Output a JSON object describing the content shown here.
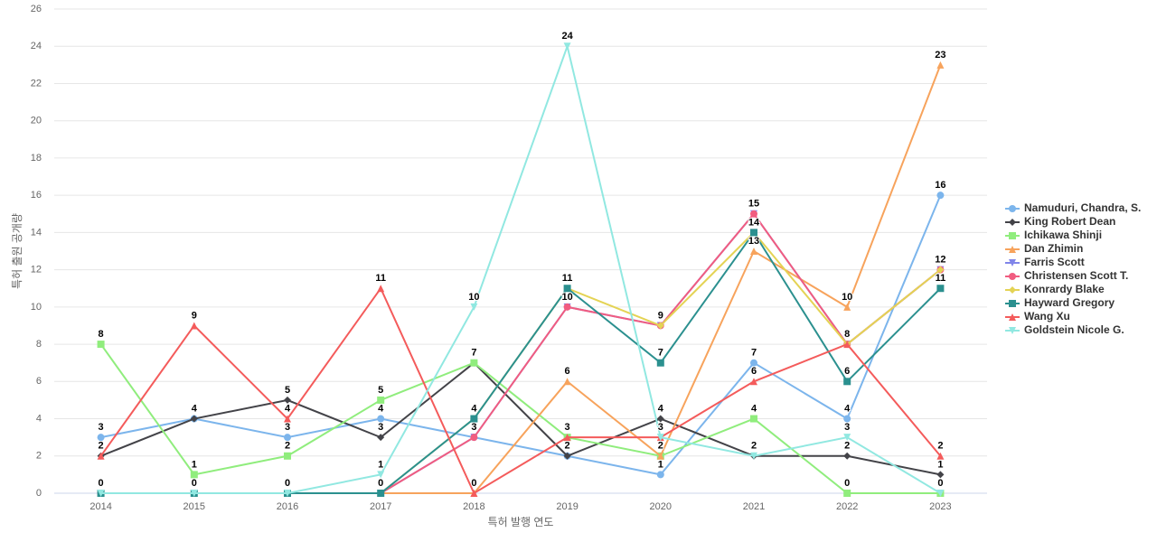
{
  "chart_data": {
    "type": "line",
    "x_label": "특허 발행 연도",
    "y_label": "특허 출원 공개량",
    "categories": [
      "2014",
      "2015",
      "2016",
      "2017",
      "2018",
      "2019",
      "2020",
      "2021",
      "2022",
      "2023"
    ],
    "ylim": [
      0,
      26
    ],
    "yticks": [
      0,
      2,
      4,
      6,
      8,
      10,
      12,
      14,
      16,
      18,
      20,
      22,
      24,
      26
    ],
    "grid": true,
    "legend": "right",
    "series": [
      {
        "name": "Namuduri, Chandra, S.",
        "color": "#7cb5ec",
        "values": [
          3,
          4,
          3,
          4,
          3,
          2,
          1,
          7,
          4,
          16
        ]
      },
      {
        "name": "King Robert Dean",
        "color": "#434348",
        "values": [
          2,
          4,
          5,
          3,
          7,
          2,
          4,
          2,
          2,
          1
        ]
      },
      {
        "name": "Ichikawa Shinji",
        "color": "#90ed7d",
        "values": [
          8,
          1,
          2,
          5,
          7,
          3,
          2,
          4,
          0,
          0
        ]
      },
      {
        "name": "Dan Zhimin",
        "color": "#f7a35c",
        "values": [
          0,
          0,
          0,
          0,
          0,
          6,
          2,
          13,
          10,
          23
        ]
      },
      {
        "name": "Farris Scott",
        "color": "#8085e9",
        "values": [
          0,
          0,
          0,
          0,
          3,
          10,
          9,
          15,
          8,
          12
        ]
      },
      {
        "name": "Christensen Scott T.",
        "color": "#f15c80",
        "values": [
          0,
          0,
          0,
          0,
          3,
          10,
          9,
          15,
          8,
          12
        ]
      },
      {
        "name": "Konrardy Blake",
        "color": "#e4d354",
        "values": [
          0,
          0,
          0,
          0,
          4,
          11,
          9,
          14,
          8,
          12
        ]
      },
      {
        "name": "Hayward Gregory",
        "color": "#2b908f",
        "values": [
          0,
          0,
          0,
          0,
          4,
          11,
          7,
          14,
          6,
          11
        ]
      },
      {
        "name": "Wang Xu",
        "color": "#f45b5b",
        "values": [
          2,
          9,
          4,
          11,
          0,
          3,
          3,
          6,
          8,
          2
        ]
      },
      {
        "name": "Goldstein Nicole G.",
        "color": "#91e8e1",
        "values": [
          0,
          0,
          0,
          1,
          10,
          24,
          3,
          2,
          3,
          0
        ]
      }
    ]
  }
}
